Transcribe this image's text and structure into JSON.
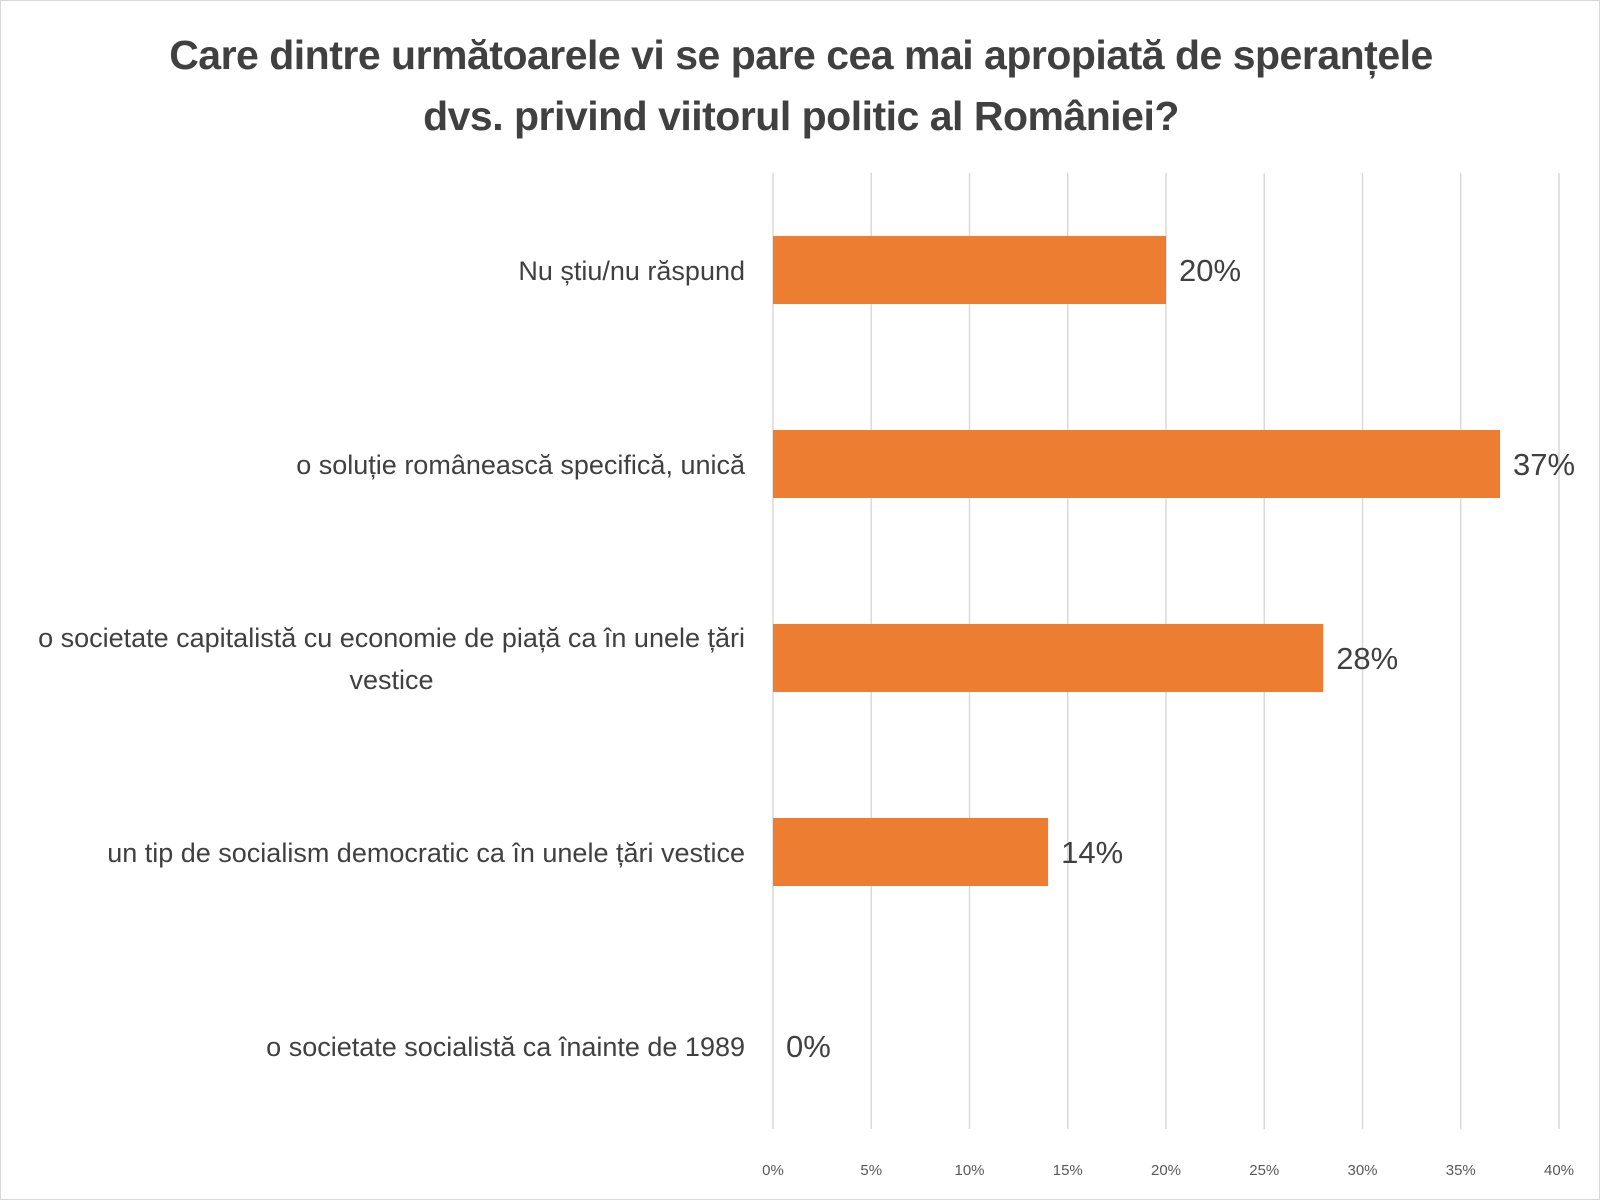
{
  "chart_data": {
    "type": "bar",
    "orientation": "horizontal",
    "title": "Care dintre următoarele vi se pare cea mai apropiată de speranțele dvs. privind viitorul politic al României?",
    "title_lines": [
      "Care dintre următoarele vi se pare cea mai apropiată de speranțele",
      "dvs. privind viitorul politic al României?"
    ],
    "categories": [
      "Nu știu/nu răspund",
      "o soluție românească specifică, unică",
      "o societate capitalistă cu economie de piață ca în unele țări vestice",
      "un tip de socialism democratic ca în unele țări vestice",
      "o societate socialistă ca înainte de 1989"
    ],
    "category_label_lines": [
      [
        "Nu știu/nu răspund"
      ],
      [
        "o soluție românească specifică, unică"
      ],
      [
        "o societate capitalistă cu economie de piață ca în unele țări",
        "vestice"
      ],
      [
        "un tip de socialism democratic ca în unele țări vestice"
      ],
      [
        "o societate socialistă ca înainte de 1989"
      ]
    ],
    "values": [
      20,
      37,
      28,
      14,
      0
    ],
    "data_labels": [
      "20%",
      "37%",
      "28%",
      "14%",
      "0%"
    ],
    "xlim": [
      0,
      40
    ],
    "x_ticks": [
      0,
      5,
      10,
      15,
      20,
      25,
      30,
      35,
      40
    ],
    "x_tick_labels": [
      "0%",
      "5%",
      "10%",
      "15%",
      "20%",
      "25%",
      "30%",
      "35%",
      "40%"
    ],
    "xlabel": "",
    "ylabel": "",
    "grid": "vertical",
    "legend": "none",
    "bar_color": "#ED7D31",
    "grid_color": "#d9d9d9"
  }
}
